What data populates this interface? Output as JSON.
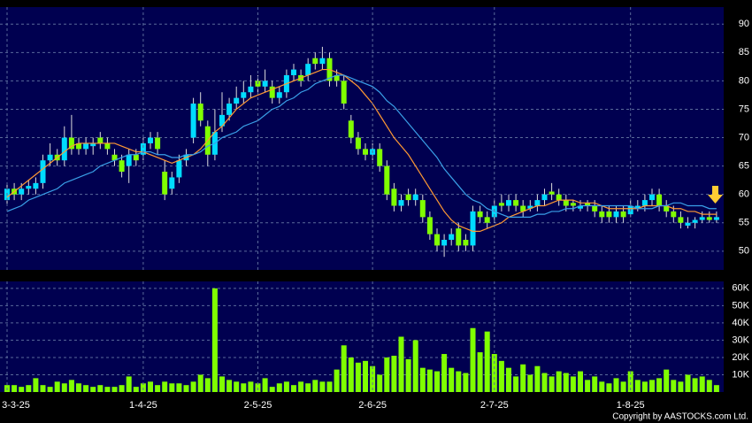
{
  "chart_data": [
    {
      "type": "candlestick",
      "open": [
        59,
        61,
        60,
        61,
        61,
        62,
        66,
        67,
        66,
        70,
        69,
        68,
        68.5,
        70,
        69,
        67,
        66,
        65,
        67,
        67,
        69,
        70,
        64,
        61,
        63,
        66,
        70,
        76,
        72,
        67,
        72,
        74,
        76,
        77,
        78,
        80,
        79,
        79,
        77,
        78,
        81,
        81,
        81,
        84,
        83,
        84,
        81,
        80,
        73,
        70,
        68,
        67,
        68,
        65,
        61,
        58,
        60,
        59,
        59,
        56,
        53,
        51,
        52,
        54,
        52,
        51,
        57,
        56,
        56,
        58.5,
        58,
        59,
        58,
        57.5,
        58,
        59,
        60.5,
        60,
        59,
        58.5,
        57.5,
        58.5,
        58,
        57,
        57,
        56,
        57,
        56.5,
        57.5,
        58,
        59,
        60,
        58,
        57,
        56,
        54.5,
        55,
        55.5,
        56,
        55.5
      ],
      "high": [
        62,
        62,
        62,
        62.5,
        63,
        67,
        69,
        68,
        72,
        74,
        70,
        70,
        70,
        71,
        70,
        68,
        67,
        68,
        68,
        70,
        71,
        71,
        66,
        64,
        67,
        68,
        77,
        78,
        73,
        75,
        78,
        77,
        79,
        80,
        81,
        81,
        82,
        80,
        79,
        82,
        83,
        82,
        84,
        85,
        86,
        85,
        82,
        81,
        74,
        71,
        69,
        69,
        69,
        66,
        62,
        60,
        61,
        61,
        60,
        57,
        54,
        53,
        54,
        55,
        53,
        58,
        58,
        57,
        59,
        60,
        60,
        60,
        59,
        59,
        60,
        61,
        62,
        61,
        60,
        59,
        59,
        59,
        59,
        58,
        58,
        58,
        58,
        59,
        59,
        60,
        61,
        61,
        59,
        58,
        57,
        56,
        56,
        57,
        57,
        57
      ],
      "low": [
        58,
        59,
        59,
        60,
        60,
        61,
        65,
        65,
        65,
        67,
        67,
        67,
        67,
        68,
        67,
        65,
        63,
        62,
        65,
        66,
        68,
        67,
        59,
        60,
        62,
        65,
        69,
        72,
        65,
        66,
        71,
        73,
        75,
        76,
        77,
        78,
        78,
        76,
        76,
        77,
        80,
        79,
        80,
        82,
        82,
        79,
        79,
        75,
        69,
        67,
        66,
        66,
        64,
        59,
        57,
        57,
        58,
        58,
        55,
        52,
        50,
        49,
        51,
        50,
        50,
        50,
        55,
        54,
        55,
        57,
        57,
        57,
        56,
        57,
        57,
        58,
        59,
        58,
        57,
        57,
        57,
        57,
        56,
        55,
        55,
        55,
        55,
        56,
        57,
        57,
        58,
        57,
        56,
        55,
        54,
        54,
        54,
        55,
        55,
        55
      ],
      "close": [
        61,
        60,
        61,
        61.5,
        62,
        66,
        67,
        66,
        70,
        68,
        68,
        69,
        69,
        69,
        68,
        66,
        64,
        67,
        66,
        69,
        70,
        68,
        60,
        63,
        66,
        67,
        76,
        73,
        67,
        71,
        74,
        76,
        77,
        78,
        79,
        79,
        80,
        77,
        78,
        81,
        82,
        80,
        83,
        83,
        84,
        80,
        80,
        76,
        70,
        68,
        67,
        68,
        65,
        60,
        58,
        59,
        59,
        60,
        56,
        53,
        51,
        52,
        53,
        51,
        51,
        57,
        56,
        55,
        58,
        58,
        59,
        58,
        57,
        58,
        59,
        60,
        60,
        59,
        58,
        58,
        58,
        58,
        57,
        56,
        56,
        57,
        56,
        58,
        58,
        59,
        60,
        58,
        57,
        56,
        55,
        55,
        55.5,
        56,
        55.5,
        56
      ],
      "up_color": "#00dcff",
      "down_color": "#80ff00",
      "series": [
        {
          "color": "#ff9933",
          "values": [
            59.5,
            60.5,
            61.5,
            62.5,
            63.5,
            64.5,
            65.5,
            66.5,
            67.5,
            68.5,
            69,
            69,
            69,
            69,
            69,
            69,
            68.5,
            68,
            67.5,
            67.5,
            67,
            66.5,
            66,
            65.5,
            66,
            66.5,
            67,
            68,
            69.5,
            71,
            72,
            73.5,
            75,
            76,
            77,
            77.5,
            78,
            78.5,
            79,
            79.5,
            80,
            80.5,
            81,
            81.5,
            82,
            82,
            81.5,
            81,
            80,
            79,
            77.5,
            76,
            74,
            72,
            70,
            68.5,
            67,
            65,
            63,
            61,
            59,
            57,
            55.5,
            54.5,
            54,
            53.5,
            53.5,
            54,
            54.5,
            55,
            56,
            56.5,
            57,
            57.5,
            58,
            58,
            58.5,
            59,
            59,
            59,
            58.5,
            58.5,
            58.5,
            58,
            57.5,
            57.5,
            57.5,
            57.5,
            57.5,
            58,
            58,
            58,
            58,
            57.5,
            57.5,
            57,
            57,
            56.5,
            56.5,
            56.5
          ]
        },
        {
          "color": "#3aa0e8",
          "values": [
            57,
            57.5,
            58,
            59,
            59.5,
            60,
            60.5,
            61,
            62,
            62.5,
            63,
            63.5,
            64,
            65,
            65.5,
            66,
            66.5,
            67,
            67,
            67.5,
            67.5,
            67,
            67,
            66.5,
            66.5,
            67,
            67,
            67.5,
            68.5,
            69,
            70,
            70.5,
            71,
            72,
            72.5,
            73,
            74,
            75,
            75.5,
            76.5,
            77,
            78,
            78.5,
            79.5,
            80,
            80.5,
            81,
            81,
            80.5,
            80,
            79.5,
            79,
            78,
            76.5,
            75.5,
            74,
            72.5,
            71,
            69.5,
            68,
            66.5,
            64.5,
            63,
            61.5,
            60,
            59,
            58.5,
            57.5,
            57,
            56.5,
            56,
            56,
            56,
            56,
            56.5,
            56.5,
            57,
            57,
            57.5,
            57.5,
            58,
            58,
            58,
            58,
            58,
            58,
            58,
            58,
            57.5,
            57.5,
            57.5,
            58,
            58,
            58.5,
            58.5,
            58,
            58,
            58,
            57.5,
            57.5
          ]
        }
      ],
      "ylim": [
        46.7,
        93
      ],
      "yticks": [
        50,
        55,
        60,
        65,
        70,
        75,
        80,
        85,
        90
      ],
      "grid": true
    },
    {
      "type": "bar",
      "categories": [
        "3-3-25",
        null,
        null,
        null,
        null,
        null,
        null,
        null,
        null,
        null,
        null,
        null,
        null,
        null,
        null,
        null,
        null,
        null,
        null,
        "1-4-25",
        null,
        null,
        null,
        null,
        null,
        null,
        null,
        null,
        null,
        null,
        null,
        null,
        null,
        null,
        null,
        "2-5-25",
        null,
        null,
        null,
        null,
        null,
        null,
        null,
        null,
        null,
        null,
        null,
        null,
        null,
        null,
        null,
        "2-6-25",
        null,
        null,
        null,
        null,
        null,
        null,
        null,
        null,
        null,
        null,
        null,
        null,
        null,
        null,
        null,
        null,
        "2-7-25",
        null,
        null,
        null,
        null,
        null,
        null,
        null,
        null,
        null,
        null,
        null,
        null,
        null,
        null,
        null,
        null,
        null,
        null,
        "1-8-25",
        null,
        null,
        null,
        null,
        null,
        null,
        null,
        null,
        null,
        null,
        null,
        null
      ],
      "values": [
        4000,
        4000,
        3000,
        4000,
        8000,
        4000,
        3000,
        6000,
        5000,
        7000,
        5000,
        4000,
        3000,
        4000,
        3000,
        3000,
        4000,
        9000,
        3000,
        5000,
        6000,
        4000,
        6000,
        5000,
        5000,
        4000,
        6000,
        10000,
        8000,
        60000,
        9000,
        7000,
        6000,
        5000,
        6000,
        5000,
        8000,
        3000,
        5000,
        6000,
        4000,
        6000,
        5000,
        7000,
        6000,
        6000,
        13000,
        27000,
        20000,
        17000,
        18000,
        15000,
        10000,
        20000,
        21000,
        32000,
        19000,
        30000,
        14000,
        13000,
        12000,
        22000,
        14000,
        12000,
        11000,
        37000,
        23000,
        35000,
        22000,
        18000,
        14000,
        9000,
        16000,
        10000,
        15000,
        11000,
        9000,
        12000,
        11000,
        9000,
        12000,
        7000,
        9000,
        6000,
        5000,
        8000,
        6000,
        12000,
        7000,
        6000,
        7000,
        8000,
        13000,
        7000,
        6000,
        10000,
        8000,
        9000,
        7000,
        4000
      ],
      "color": "#80ff00",
      "ylim": [
        0,
        64000
      ],
      "yticks": [
        {
          "value": 10000,
          "label": "10K"
        },
        {
          "value": 20000,
          "label": "20K"
        },
        {
          "value": 30000,
          "label": "30K"
        },
        {
          "value": 40000,
          "label": "40K"
        },
        {
          "value": 50000,
          "label": "50K"
        },
        {
          "value": 60000,
          "label": "60K"
        }
      ],
      "grid": true
    }
  ],
  "copyright": "Copyright by AASTOCKS.com Ltd."
}
